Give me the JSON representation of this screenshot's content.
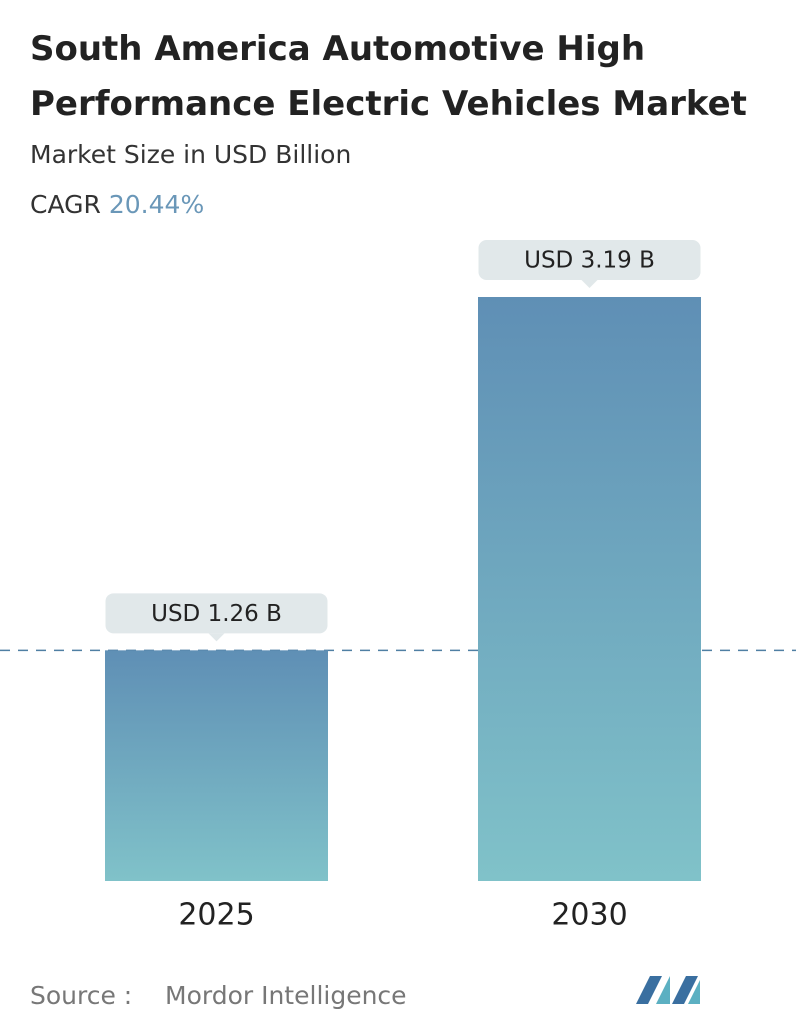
{
  "chart_data": {
    "type": "bar",
    "title": "South America Automotive High Performance Electric Vehicles Market",
    "subtitle": "Market Size in USD Billion",
    "cagr_label": "CAGR",
    "cagr_value": "20.44%",
    "categories": [
      "2025",
      "2030"
    ],
    "values": [
      1.26,
      3.19
    ],
    "value_labels": [
      "USD 1.26 B",
      "USD 3.19 B"
    ],
    "color": "#6a9bbd",
    "source_label": "Source :",
    "source": "Mordor Intelligence"
  }
}
